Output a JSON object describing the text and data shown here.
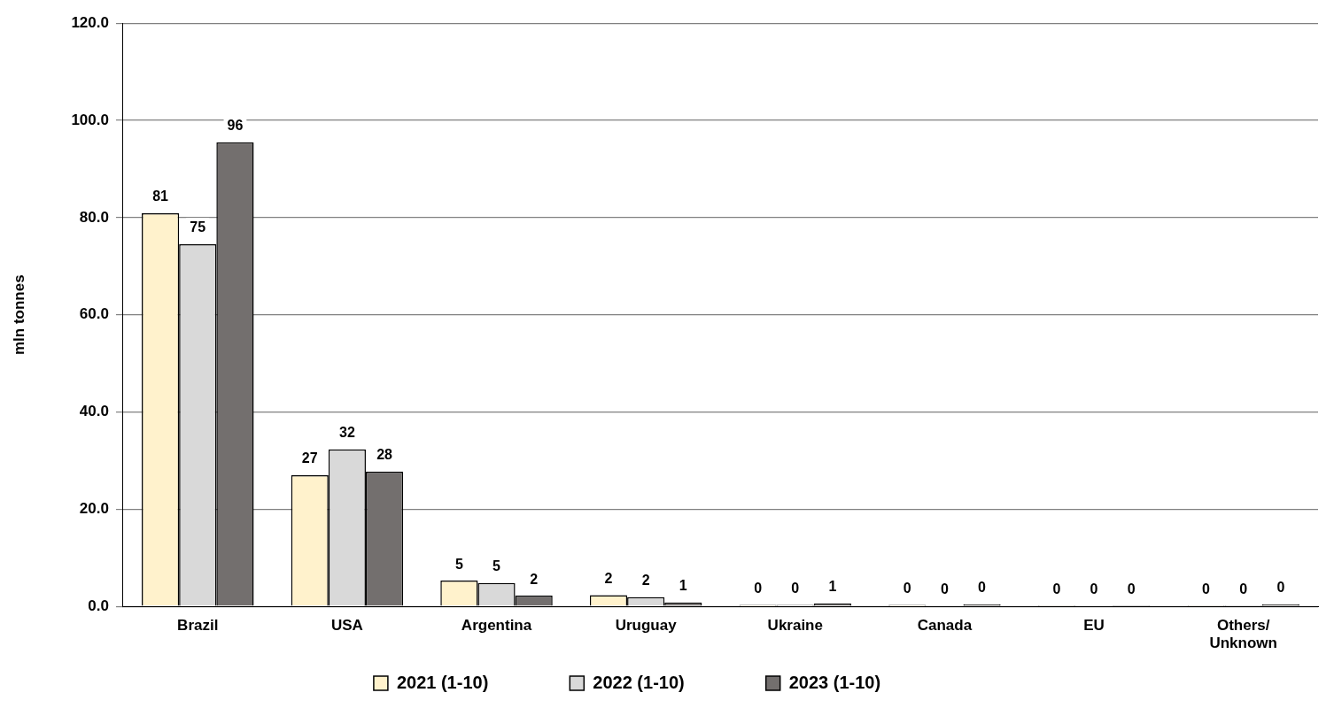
{
  "chart_data": {
    "type": "bar",
    "ylabel": "mln tonnes",
    "categories": [
      "Brazil",
      "USA",
      "Argentina",
      "Uruguay",
      "Ukraine",
      "Canada",
      "EU",
      "Others/\nUnknown"
    ],
    "series": [
      {
        "name": "2021 (1-10)",
        "color": "#fff2cc",
        "values": [
          80.9,
          27.0,
          5.3,
          2.3,
          0.3,
          0.3,
          0.2,
          0.2
        ],
        "value_labels": [
          "81",
          "27",
          "5",
          "2",
          "0",
          "0",
          "0",
          "0"
        ]
      },
      {
        "name": "2022 (1-10)",
        "color": "#d9d9d9",
        "values": [
          74.5,
          32.3,
          4.8,
          1.9,
          0.3,
          0.1,
          0.1,
          0.2
        ],
        "value_labels": [
          "75",
          "32",
          "5",
          "2",
          "0",
          "0",
          "0",
          "0"
        ]
      },
      {
        "name": "2023 (1-10)",
        "color": "#736f6e",
        "values": [
          95.5,
          27.7,
          2.2,
          0.8,
          0.6,
          0.4,
          0.2,
          0.4
        ],
        "value_labels": [
          "96",
          "28",
          "2",
          "1",
          "1",
          "0",
          "0",
          "0"
        ]
      }
    ],
    "ylim": [
      0,
      120
    ],
    "yticks": [
      {
        "value": 0,
        "label": "0.0"
      },
      {
        "value": 20,
        "label": "20.0"
      },
      {
        "value": 40,
        "label": "40.0"
      },
      {
        "value": 60,
        "label": "60.0"
      },
      {
        "value": 80,
        "label": "80.0"
      },
      {
        "value": 100,
        "label": "100.0"
      },
      {
        "value": 120,
        "label": "120.0"
      }
    ],
    "grid": "y",
    "legend": "bottom"
  }
}
